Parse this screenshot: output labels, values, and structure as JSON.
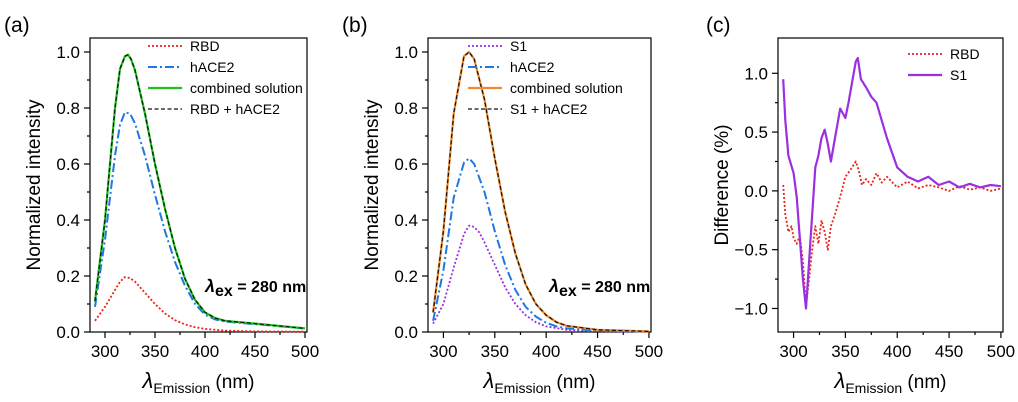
{
  "chart_data": [
    {
      "panel_label": "(a)",
      "type": "line",
      "xlabel": {
        "symbol": "λ",
        "subscript": "Emission",
        "unit": " (nm)"
      },
      "ylabel": "Normalized intensity",
      "xlim": [
        285,
        502
      ],
      "ylim": [
        0,
        1.05
      ],
      "xticks": [
        300,
        350,
        400,
        450,
        500
      ],
      "yticks": [
        0.0,
        0.2,
        0.4,
        0.6,
        0.8,
        1.0
      ],
      "ytick_labels": [
        "0.0",
        "0.2",
        "0.4",
        "0.6",
        "0.8",
        "1.0"
      ],
      "legend_position": "top-right",
      "annotation": {
        "symbol": "λ",
        "subscript": "ex",
        "text": " = 280 nm"
      },
      "series": [
        {
          "name": "RBD",
          "color": "#e8241c",
          "style": "dotted",
          "x": [
            290,
            300,
            310,
            315,
            320,
            325,
            330,
            340,
            350,
            360,
            370,
            380,
            390,
            400,
            420,
            450,
            500
          ],
          "y": [
            0.04,
            0.09,
            0.15,
            0.18,
            0.196,
            0.193,
            0.18,
            0.14,
            0.1,
            0.066,
            0.042,
            0.027,
            0.017,
            0.011,
            0.005,
            0.002,
            0.001
          ]
        },
        {
          "name": "hACE2",
          "color": "#1f77e0",
          "style": "dashdot",
          "x": [
            290,
            300,
            310,
            315,
            320,
            325,
            330,
            340,
            350,
            360,
            370,
            380,
            390,
            400,
            410,
            420,
            450,
            500
          ],
          "y": [
            0.09,
            0.33,
            0.63,
            0.74,
            0.785,
            0.78,
            0.745,
            0.63,
            0.49,
            0.36,
            0.25,
            0.165,
            0.1,
            0.062,
            0.045,
            0.037,
            0.028,
            0.013
          ]
        },
        {
          "name": "combined solution",
          "color": "#1dc01d",
          "style": "solid",
          "x": [
            290,
            300,
            310,
            315,
            320,
            323,
            326,
            330,
            340,
            350,
            360,
            370,
            380,
            390,
            400,
            410,
            420,
            450,
            500
          ],
          "y": [
            0.11,
            0.4,
            0.8,
            0.94,
            0.985,
            0.99,
            0.975,
            0.935,
            0.78,
            0.6,
            0.44,
            0.3,
            0.19,
            0.115,
            0.07,
            0.05,
            0.04,
            0.03,
            0.013
          ]
        },
        {
          "name": "RBD + hACE2",
          "color": "#111111",
          "style": "dashed",
          "x": [
            290,
            300,
            310,
            315,
            320,
            323,
            326,
            330,
            340,
            350,
            360,
            370,
            380,
            390,
            400,
            410,
            420,
            450,
            500
          ],
          "y": [
            0.11,
            0.4,
            0.8,
            0.94,
            0.985,
            0.99,
            0.975,
            0.935,
            0.78,
            0.6,
            0.44,
            0.3,
            0.19,
            0.115,
            0.07,
            0.05,
            0.04,
            0.03,
            0.013
          ]
        }
      ]
    },
    {
      "panel_label": "(b)",
      "type": "line",
      "xlabel": {
        "symbol": "λ",
        "subscript": "Emission",
        "unit": " (nm)"
      },
      "ylabel": "Normalized intensity",
      "xlim": [
        285,
        502
      ],
      "ylim": [
        0,
        1.05
      ],
      "xticks": [
        300,
        350,
        400,
        450,
        500
      ],
      "yticks": [
        0.0,
        0.2,
        0.4,
        0.6,
        0.8,
        1.0
      ],
      "ytick_labels": [
        "0.0",
        "0.2",
        "0.4",
        "0.6",
        "0.8",
        "1.0"
      ],
      "legend_position": "top-right",
      "annotation": {
        "symbol": "λ",
        "subscript": "ex",
        "text": " = 280 nm"
      },
      "series": [
        {
          "name": "S1",
          "color": "#9b30e0",
          "style": "dotted",
          "x": [
            290,
            300,
            310,
            320,
            325,
            330,
            335,
            340,
            350,
            360,
            370,
            380,
            390,
            400,
            420,
            450,
            500
          ],
          "y": [
            0.03,
            0.1,
            0.23,
            0.35,
            0.38,
            0.375,
            0.355,
            0.32,
            0.24,
            0.16,
            0.1,
            0.06,
            0.035,
            0.02,
            0.008,
            0.003,
            0.001
          ]
        },
        {
          "name": "hACE2",
          "color": "#1f77e0",
          "style": "dashdot",
          "x": [
            290,
            300,
            310,
            320,
            325,
            330,
            340,
            350,
            360,
            370,
            380,
            390,
            400,
            410,
            420,
            450,
            500
          ],
          "y": [
            0.04,
            0.22,
            0.48,
            0.605,
            0.62,
            0.6,
            0.5,
            0.36,
            0.24,
            0.15,
            0.09,
            0.055,
            0.033,
            0.02,
            0.013,
            0.005,
            0.001
          ]
        },
        {
          "name": "combined solution",
          "color": "#f08a2a",
          "style": "solid",
          "x": [
            290,
            300,
            310,
            320,
            325,
            330,
            340,
            350,
            360,
            370,
            380,
            390,
            400,
            410,
            420,
            450,
            500
          ],
          "y": [
            0.07,
            0.36,
            0.78,
            0.985,
            1.0,
            0.975,
            0.83,
            0.62,
            0.43,
            0.28,
            0.17,
            0.1,
            0.06,
            0.035,
            0.022,
            0.008,
            0.002
          ]
        },
        {
          "name": "S1 + hACE2",
          "color": "#111111",
          "style": "dashed",
          "x": [
            290,
            300,
            310,
            320,
            325,
            330,
            340,
            350,
            360,
            370,
            380,
            390,
            400,
            410,
            420,
            450,
            500
          ],
          "y": [
            0.07,
            0.36,
            0.78,
            0.985,
            1.0,
            0.975,
            0.83,
            0.62,
            0.43,
            0.28,
            0.17,
            0.1,
            0.06,
            0.035,
            0.022,
            0.008,
            0.002
          ]
        }
      ]
    },
    {
      "panel_label": "(c)",
      "type": "line",
      "xlabel": {
        "symbol": "λ",
        "subscript": "Emission",
        "unit": " (nm)"
      },
      "ylabel": "Difference (%)",
      "xlim": [
        285,
        502
      ],
      "ylim": [
        -1.2,
        1.3
      ],
      "xticks": [
        300,
        350,
        400,
        450,
        500
      ],
      "yticks": [
        -1.0,
        -0.5,
        0.0,
        0.5,
        1.0
      ],
      "ytick_labels": [
        "−1.0",
        "−0.5",
        "0.0",
        "0.5",
        "1.0"
      ],
      "legend_position": "top-right",
      "series": [
        {
          "name": "RBD",
          "color": "#e8241c",
          "style": "dotted",
          "x": [
            290,
            292,
            295,
            298,
            300,
            303,
            306,
            309,
            312,
            315,
            318,
            321,
            324,
            327,
            330,
            333,
            336,
            340,
            345,
            350,
            355,
            360,
            363,
            366,
            370,
            375,
            380,
            385,
            390,
            400,
            410,
            420,
            430,
            440,
            450,
            460,
            470,
            480,
            490,
            500
          ],
          "y": [
            0.05,
            -0.2,
            -0.35,
            -0.3,
            -0.4,
            -0.45,
            -0.38,
            -0.6,
            -0.98,
            -0.75,
            -0.5,
            -0.3,
            -0.45,
            -0.25,
            -0.35,
            -0.5,
            -0.3,
            -0.2,
            -0.05,
            0.12,
            0.18,
            0.25,
            0.17,
            0.05,
            0.1,
            0.05,
            0.15,
            0.07,
            0.12,
            0.03,
            0.08,
            0.02,
            0.05,
            0.03,
            0.0,
            0.04,
            0.01,
            0.03,
            0.0,
            0.02
          ]
        },
        {
          "name": "S1",
          "color": "#9b30e0",
          "style": "solid",
          "x": [
            290,
            292,
            295,
            300,
            303,
            306,
            309,
            312,
            315,
            318,
            321,
            324,
            327,
            330,
            333,
            336,
            340,
            345,
            350,
            353,
            356,
            360,
            362,
            365,
            370,
            375,
            380,
            390,
            400,
            410,
            420,
            430,
            440,
            450,
            460,
            470,
            480,
            490,
            500
          ],
          "y": [
            0.95,
            0.6,
            0.3,
            0.15,
            -0.05,
            -0.4,
            -0.75,
            -1.0,
            -0.6,
            -0.2,
            0.2,
            0.3,
            0.45,
            0.52,
            0.4,
            0.25,
            0.45,
            0.7,
            0.62,
            0.75,
            0.9,
            1.1,
            1.13,
            0.95,
            0.88,
            0.8,
            0.75,
            0.45,
            0.2,
            0.12,
            0.08,
            0.12,
            0.05,
            0.08,
            0.03,
            0.06,
            0.03,
            0.05,
            0.04
          ]
        }
      ]
    }
  ]
}
